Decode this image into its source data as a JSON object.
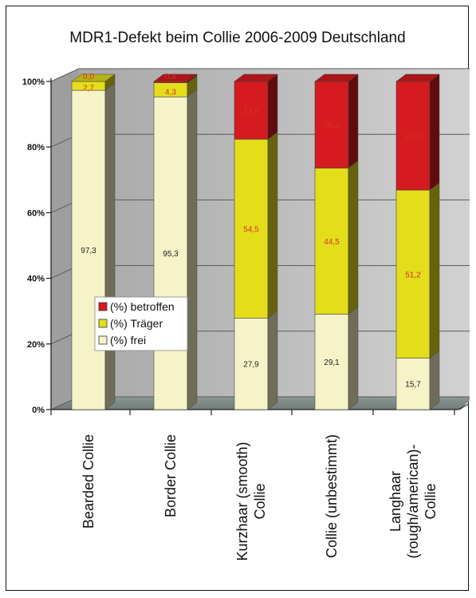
{
  "chart_data": {
    "type": "bar",
    "stacked": true,
    "percent": true,
    "title": "MDR1-Defekt beim Collie 2006-2009 Deutschland",
    "categories": [
      [
        "Bearded Collie"
      ],
      [
        "Border Collie"
      ],
      [
        "Kurzhaar (smooth)",
        "Collie"
      ],
      [
        "Collie (unbestimmt)"
      ],
      [
        "Langhaar",
        "(rough/american)-",
        "Collie"
      ]
    ],
    "series": [
      {
        "name": "(%) frei",
        "values": [
          97.3,
          95.3,
          27.9,
          29.1,
          15.7
        ],
        "labels": [
          "97,3",
          "95,3",
          "27,9",
          "29,1",
          "15,7"
        ]
      },
      {
        "name": "(%) Träger",
        "values": [
          2.7,
          4.3,
          54.5,
          44.5,
          51.2
        ],
        "labels": [
          "2,7",
          "4,3",
          "54,5",
          "44,5",
          "51,2"
        ]
      },
      {
        "name": "(%) betroffen",
        "values": [
          0.0,
          0.4,
          17.6,
          26.4,
          33.1
        ],
        "labels": [
          "0,0",
          "0,4",
          "17,6",
          "26,4",
          "33,1"
        ]
      }
    ],
    "y_ticks": [
      "0%",
      "20%",
      "40%",
      "60%",
      "80%",
      "100%"
    ],
    "ylim": [
      0,
      100
    ],
    "grid": true,
    "legend_position": "center-left",
    "colors": {
      "frei": "#f6f3c8",
      "traeger": "#e4dd1a",
      "betroffen": "#d51b1f",
      "wall": "#bcbcbc",
      "floor": "#7e8a86",
      "frei_label": "#222222",
      "series_label": "#d6322c"
    }
  }
}
